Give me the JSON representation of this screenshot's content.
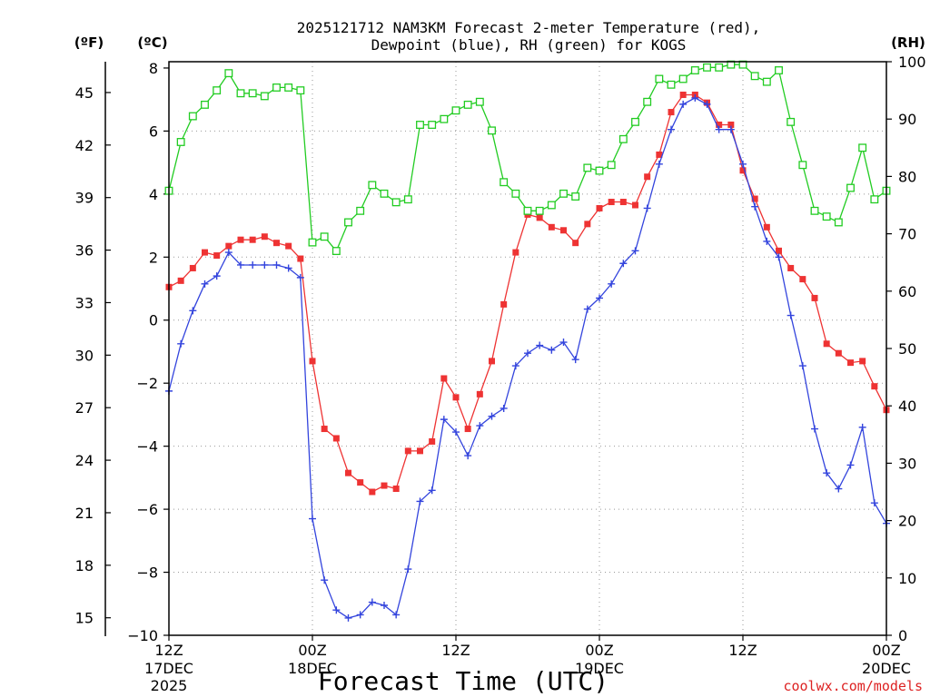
{
  "chart_data": {
    "type": "line",
    "title_line1": "2025121712 NAM3KM Forecast 2-meter Temperature (red),",
    "title_line2": "Dewpoint (blue), RH (green) for KOGS",
    "xlabel": "Forecast Time (UTC)",
    "left_outer_label": "(ºF)",
    "left_inner_label": "(ºC)",
    "right_label": "(RH)",
    "credit": "coolwx.com/models",
    "x_hours_range": [
      0,
      60
    ],
    "ylim_c": [
      -10,
      8.2
    ],
    "ylim_rh": [
      0,
      100
    ],
    "celsius_ticks": [
      8,
      6,
      4,
      2,
      0,
      -2,
      -4,
      -6,
      -8,
      -10
    ],
    "fahrenheit_ticks": [
      45,
      42,
      39,
      36,
      33,
      30,
      27,
      24,
      21,
      18,
      15
    ],
    "rh_ticks": [
      100,
      90,
      80,
      70,
      60,
      50,
      40,
      30,
      20,
      10,
      0
    ],
    "x_ticks": [
      {
        "hour": 0,
        "line1": "12Z",
        "line2": "17DEC",
        "line3": "2025"
      },
      {
        "hour": 12,
        "line1": "00Z",
        "line2": "18DEC",
        "line3": ""
      },
      {
        "hour": 24,
        "line1": "12Z",
        "line2": "",
        "line3": ""
      },
      {
        "hour": 36,
        "line1": "00Z",
        "line2": "19DEC",
        "line3": ""
      },
      {
        "hour": 48,
        "line1": "12Z",
        "line2": "",
        "line3": ""
      },
      {
        "hour": 60,
        "line1": "00Z",
        "line2": "20DEC",
        "line3": ""
      }
    ],
    "series": [
      {
        "name": "Temperature",
        "unit": "C",
        "color": "#ee3333",
        "marker": "filled-square",
        "values": [
          1.05,
          1.25,
          1.65,
          2.15,
          2.05,
          2.35,
          2.55,
          2.55,
          2.65,
          2.45,
          2.35,
          1.95,
          -1.3,
          -3.45,
          -3.75,
          -4.85,
          -5.15,
          -5.45,
          -5.25,
          -5.35,
          -4.15,
          -4.15,
          -3.85,
          -1.85,
          -2.45,
          -3.45,
          -2.35,
          -1.3,
          0.5,
          2.15,
          3.35,
          3.25,
          2.95,
          2.85,
          2.45,
          3.05,
          3.55,
          3.75,
          3.75,
          3.65,
          4.55,
          5.25,
          6.6,
          7.15,
          7.15,
          6.9,
          6.2,
          6.2,
          4.75,
          3.85,
          2.95,
          2.2,
          1.65,
          1.3,
          0.7,
          -0.75,
          -1.05,
          -1.35,
          -1.3,
          -2.1,
          -2.85
        ]
      },
      {
        "name": "Dewpoint",
        "unit": "C",
        "color": "#3344dd",
        "marker": "plus",
        "values": [
          -2.25,
          -0.75,
          0.3,
          1.15,
          1.4,
          2.15,
          1.75,
          1.75,
          1.75,
          1.75,
          1.65,
          1.35,
          -6.3,
          -8.25,
          -9.2,
          -9.45,
          -9.35,
          -8.95,
          -9.05,
          -9.35,
          -7.9,
          -5.75,
          -5.4,
          -3.15,
          -3.55,
          -4.3,
          -3.35,
          -3.05,
          -2.8,
          -1.45,
          -1.05,
          -0.8,
          -0.95,
          -0.7,
          -1.25,
          0.35,
          0.7,
          1.15,
          1.8,
          2.2,
          3.55,
          4.95,
          6.05,
          6.85,
          7.05,
          6.85,
          6.05,
          6.05,
          4.95,
          3.6,
          2.5,
          2.0,
          0.15,
          -1.45,
          -3.45,
          -4.85,
          -5.35,
          -4.6,
          -3.4,
          -5.8,
          -6.45
        ]
      },
      {
        "name": "RH",
        "unit": "%",
        "color": "#22cc22",
        "marker": "open-square",
        "values": [
          77.5,
          86,
          90.5,
          92.5,
          95,
          98,
          94.5,
          94.5,
          94,
          95.5,
          95.5,
          95,
          68.5,
          69.5,
          67,
          72,
          74,
          78.5,
          77,
          75.5,
          76,
          89,
          89,
          90,
          91.5,
          92.5,
          93,
          88,
          79,
          77,
          74,
          74,
          75,
          77,
          76.5,
          81.5,
          81,
          82,
          86.5,
          89.5,
          93,
          97,
          96,
          97,
          98.5,
          99,
          99,
          99.5,
          99.5,
          97.5,
          96.5,
          98.5,
          89.5,
          82,
          74,
          73,
          72,
          78,
          85,
          76,
          77.5
        ]
      }
    ]
  }
}
